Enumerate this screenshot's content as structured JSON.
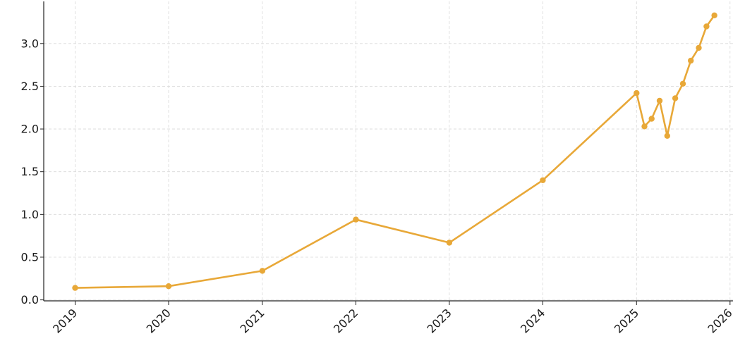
{
  "chart_data": {
    "type": "line",
    "title": "",
    "xlabel": "",
    "ylabel": "",
    "color": "#E8A838",
    "grid": true,
    "xlim": [
      "2018-09-01",
      "2026-03-01"
    ],
    "ylim": [
      0,
      3.4
    ],
    "x_tick_labels": [
      "2019",
      "2020",
      "2021",
      "2022",
      "2023",
      "2024",
      "2025",
      "2026"
    ],
    "y_ticks": [
      0.0,
      0.5,
      1.0,
      1.5,
      2.0,
      2.5,
      3.0
    ],
    "y_tick_labels": [
      "0.0",
      "0.5",
      "1.0",
      "1.5",
      "2.0",
      "2.5",
      "3.0"
    ],
    "series": [
      {
        "x": [
          "2019-01-01",
          "2020-01-01",
          "2021-01-01",
          "2022-01-01",
          "2023-01-01",
          "2024-01-01",
          "2025-01-01",
          "2025-02-01",
          "2025-03-01",
          "2025-04-01",
          "2025-05-01",
          "2025-06-01",
          "2025-07-01",
          "2025-08-01",
          "2025-09-01",
          "2025-10-01",
          "2025-11-01"
        ],
        "values": [
          0.14,
          0.16,
          0.34,
          0.94,
          0.67,
          1.4,
          2.42,
          2.03,
          2.12,
          2.33,
          1.92,
          2.36,
          2.53,
          2.8,
          2.95,
          3.2,
          3.33
        ]
      }
    ]
  }
}
